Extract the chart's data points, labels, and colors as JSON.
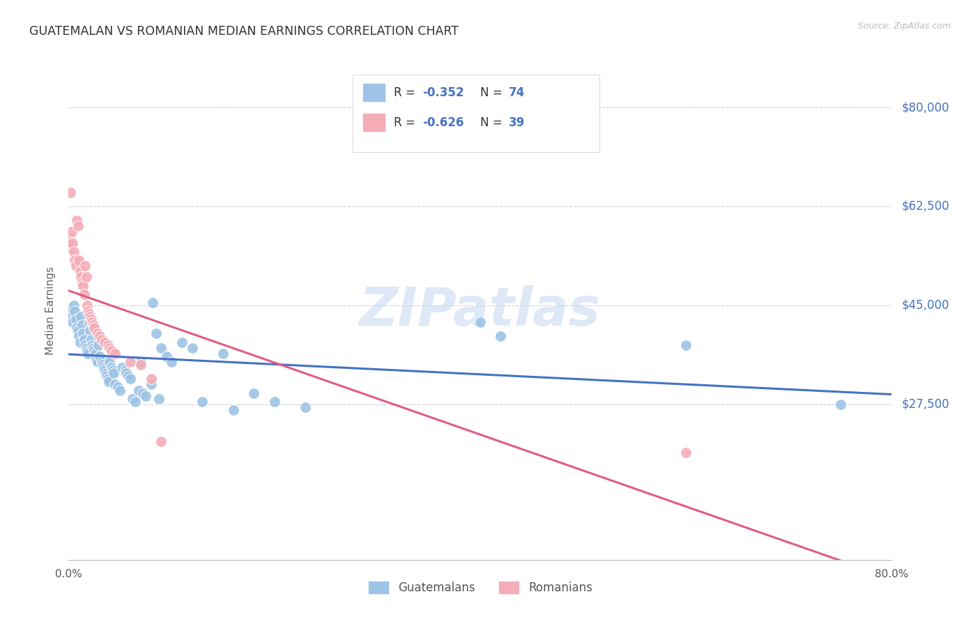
{
  "title": "GUATEMALAN VS ROMANIAN MEDIAN EARNINGS CORRELATION CHART",
  "source": "Source: ZipAtlas.com",
  "ylabel": "Median Earnings",
  "blue_color": "#9dc3e6",
  "pink_color": "#f4acb7",
  "line_blue": "#4472c4",
  "line_pink": "#e05c80",
  "label_color": "#4472c4",
  "watermark_color": "#c8daf0",
  "legend_label_blue": "Guatemalans",
  "legend_label_pink": "Romanians",
  "xmin": 0.0,
  "xmax": 0.8,
  "ymin": 0,
  "ymax": 88000,
  "ytick_vals": [
    27500,
    45000,
    62500,
    80000
  ],
  "ytick_labels": [
    "$27,500",
    "$45,000",
    "$62,500",
    "$80,000"
  ],
  "R_blue": "-0.352",
  "N_blue": "74",
  "R_pink": "-0.626",
  "N_pink": "39",
  "guatemalan_x": [
    0.002,
    0.003,
    0.004,
    0.005,
    0.006,
    0.007,
    0.008,
    0.009,
    0.01,
    0.011,
    0.012,
    0.013,
    0.014,
    0.015,
    0.016,
    0.017,
    0.018,
    0.019,
    0.02,
    0.021,
    0.022,
    0.023,
    0.024,
    0.025,
    0.026,
    0.027,
    0.028,
    0.029,
    0.03,
    0.032,
    0.033,
    0.034,
    0.035,
    0.036,
    0.037,
    0.038,
    0.039,
    0.04,
    0.042,
    0.043,
    0.044,
    0.045,
    0.048,
    0.05,
    0.052,
    0.055,
    0.056,
    0.058,
    0.06,
    0.062,
    0.065,
    0.068,
    0.07,
    0.072,
    0.075,
    0.08,
    0.082,
    0.085,
    0.088,
    0.09,
    0.095,
    0.1,
    0.11,
    0.12,
    0.13,
    0.15,
    0.16,
    0.18,
    0.2,
    0.23,
    0.4,
    0.42,
    0.6,
    0.75
  ],
  "guatemalan_y": [
    44500,
    43000,
    42000,
    45000,
    44000,
    42500,
    41000,
    40500,
    39500,
    38500,
    43000,
    41500,
    40000,
    39000,
    38000,
    37500,
    37000,
    36500,
    42000,
    40500,
    39000,
    38000,
    37500,
    37000,
    36500,
    35500,
    35000,
    38000,
    36000,
    35000,
    34500,
    34000,
    33500,
    33000,
    32500,
    32000,
    31500,
    35000,
    34000,
    33500,
    33000,
    31000,
    30500,
    30000,
    34000,
    33500,
    33000,
    32500,
    32000,
    28500,
    28000,
    30000,
    35000,
    29500,
    29000,
    31000,
    45500,
    40000,
    28500,
    37500,
    36000,
    35000,
    38500,
    37500,
    28000,
    36500,
    26500,
    29500,
    28000,
    27000,
    42000,
    39500,
    38000,
    27500
  ],
  "romanian_x": [
    0.001,
    0.002,
    0.003,
    0.004,
    0.005,
    0.006,
    0.007,
    0.008,
    0.009,
    0.01,
    0.011,
    0.012,
    0.013,
    0.014,
    0.015,
    0.016,
    0.017,
    0.018,
    0.019,
    0.02,
    0.021,
    0.022,
    0.023,
    0.024,
    0.025,
    0.028,
    0.03,
    0.032,
    0.035,
    0.038,
    0.04,
    0.042,
    0.045,
    0.06,
    0.07,
    0.08,
    0.09,
    0.6,
    0.002
  ],
  "romanian_y": [
    55000,
    57000,
    58000,
    56000,
    54500,
    53000,
    52000,
    60000,
    59000,
    53000,
    51000,
    50000,
    49000,
    48500,
    47000,
    52000,
    50000,
    45000,
    44000,
    43500,
    43000,
    42500,
    42000,
    41500,
    41000,
    40000,
    39500,
    39000,
    38500,
    38000,
    37500,
    37000,
    36500,
    35000,
    34500,
    32000,
    21000,
    19000,
    65000
  ]
}
